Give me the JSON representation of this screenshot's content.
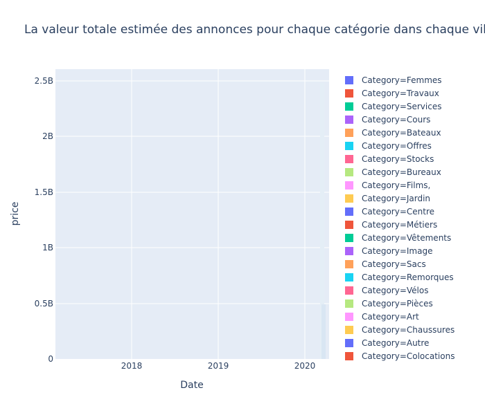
{
  "chart_data": {
    "type": "area",
    "title": "La valeur totale estimée des annonces pour chaque catégorie dans chaque vil",
    "xlabel": "Date",
    "ylabel": "price",
    "x_ticks": [
      "2018",
      "2019",
      "2020"
    ],
    "y_ticks": [
      "0",
      "0.5B",
      "1B",
      "1.5B",
      "2B",
      "2.5B"
    ],
    "ylim": [
      0,
      2500000000.0
    ],
    "grid": true,
    "legend_position": "right",
    "series": [
      {
        "name": "Category=Femmes",
        "color": "#636efa"
      },
      {
        "name": "Category=Travaux",
        "color": "#EF553B"
      },
      {
        "name": "Category=Services",
        "color": "#00cc96"
      },
      {
        "name": "Category=Cours",
        "color": "#ab63fa"
      },
      {
        "name": "Category=Bateaux",
        "color": "#FFA15A"
      },
      {
        "name": "Category=Offres",
        "color": "#19d3f3"
      },
      {
        "name": "Category=Stocks",
        "color": "#FF6692"
      },
      {
        "name": "Category=Bureaux",
        "color": "#B6E880"
      },
      {
        "name": "Category=Films,",
        "color": "#FF97FF"
      },
      {
        "name": "Category=Jardin",
        "color": "#FECB52"
      },
      {
        "name": "Category=Centre",
        "color": "#636efa"
      },
      {
        "name": "Category=Métiers",
        "color": "#EF553B"
      },
      {
        "name": "Category=Vêtements",
        "color": "#00cc96"
      },
      {
        "name": "Category=Image",
        "color": "#ab63fa"
      },
      {
        "name": "Category=Sacs",
        "color": "#FFA15A"
      },
      {
        "name": "Category=Remorques",
        "color": "#19d3f3"
      },
      {
        "name": "Category=Vélos",
        "color": "#FF6692"
      },
      {
        "name": "Category=Pièces",
        "color": "#B6E880"
      },
      {
        "name": "Category=Art",
        "color": "#FF97FF"
      },
      {
        "name": "Category=Chaussures",
        "color": "#FECB52"
      },
      {
        "name": "Category=Autre",
        "color": "#636efa"
      },
      {
        "name": "Category=Colocations",
        "color": "#EF553B"
      }
    ]
  }
}
